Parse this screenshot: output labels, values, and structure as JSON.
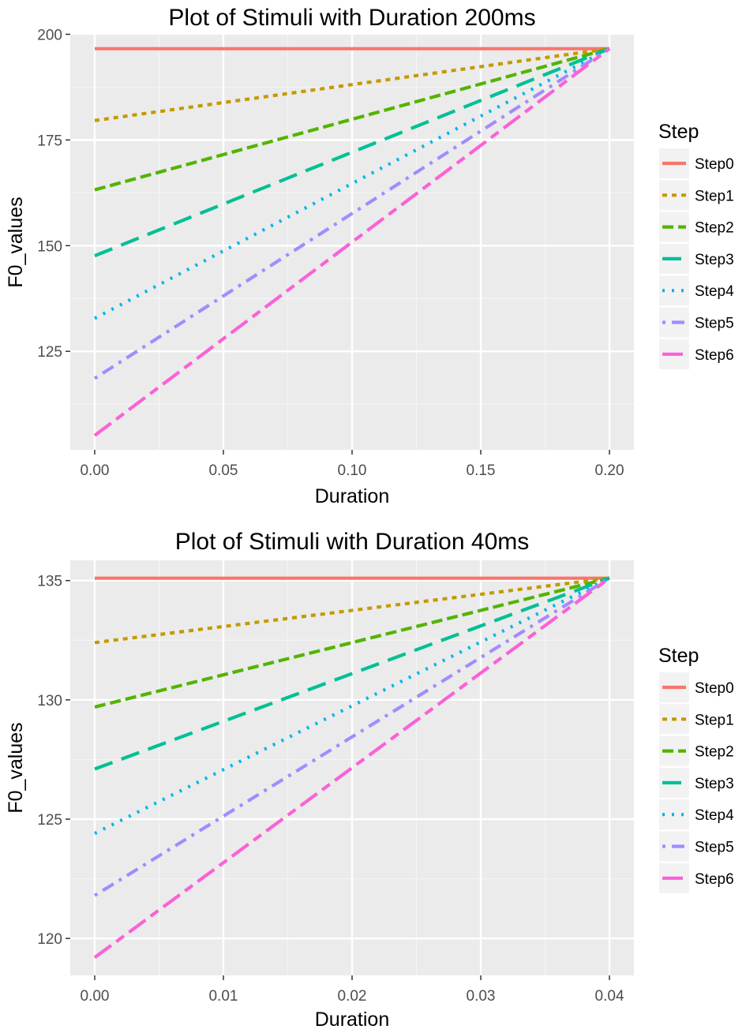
{
  "chart_data": [
    {
      "type": "line",
      "title": "Plot of Stimuli with Duration 200ms",
      "xlabel": "Duration",
      "ylabel": "F0_values",
      "xlim": [
        -0.0095,
        0.2095
      ],
      "ylim": [
        101.7,
        199.9
      ],
      "x_ticks": [
        0.0,
        0.05,
        0.1,
        0.15,
        0.2
      ],
      "x_tick_labels": [
        "0.00",
        "0.05",
        "0.10",
        "0.15",
        "0.20"
      ],
      "y_ticks": [
        125,
        150,
        175,
        200
      ],
      "y_tick_labels": [
        "125",
        "150",
        "175",
        "200"
      ],
      "grid": true,
      "legend": {
        "title": "Step",
        "position": "right"
      },
      "series": [
        {
          "name": "Step0",
          "color": "#F8766D",
          "dash": "solid",
          "x": [
            0,
            0.2
          ],
          "y": [
            196.6,
            196.6
          ]
        },
        {
          "name": "Step1",
          "color": "#C49A00",
          "dash": "dotted",
          "x": [
            0,
            0.2
          ],
          "y": [
            179.6,
            196.6
          ]
        },
        {
          "name": "Step2",
          "color": "#53B400",
          "dash": "dashed",
          "x": [
            0,
            0.2
          ],
          "y": [
            163.2,
            196.6
          ]
        },
        {
          "name": "Step3",
          "color": "#00C094",
          "dash": "longdash",
          "x": [
            0,
            0.2
          ],
          "y": [
            147.6,
            196.6
          ]
        },
        {
          "name": "Step4",
          "color": "#00B6EB",
          "dash": "dotted2",
          "x": [
            0,
            0.2
          ],
          "y": [
            132.8,
            196.6
          ]
        },
        {
          "name": "Step5",
          "color": "#A58AFF",
          "dash": "dotdash",
          "x": [
            0,
            0.2
          ],
          "y": [
            118.6,
            196.6
          ]
        },
        {
          "name": "Step6",
          "color": "#FB61D7",
          "dash": "twodash",
          "x": [
            0,
            0.2
          ],
          "y": [
            105.1,
            196.6
          ]
        }
      ]
    },
    {
      "type": "line",
      "title": "Plot of Stimuli with Duration 40ms",
      "xlabel": "Duration",
      "ylabel": "F0_values",
      "xlim": [
        -0.0019,
        0.0419
      ],
      "ylim": [
        118.45,
        135.85
      ],
      "x_ticks": [
        0.0,
        0.01,
        0.02,
        0.03,
        0.04
      ],
      "x_tick_labels": [
        "0.00",
        "0.01",
        "0.02",
        "0.03",
        "0.04"
      ],
      "y_ticks": [
        120,
        125,
        130,
        135
      ],
      "y_tick_labels": [
        "120",
        "125",
        "130",
        "135"
      ],
      "grid": true,
      "legend": {
        "title": "Step",
        "position": "right"
      },
      "series": [
        {
          "name": "Step0",
          "color": "#F8766D",
          "dash": "solid",
          "x": [
            0,
            0.04
          ],
          "y": [
            135.1,
            135.1
          ]
        },
        {
          "name": "Step1",
          "color": "#C49A00",
          "dash": "dotted",
          "x": [
            0,
            0.04
          ],
          "y": [
            132.4,
            135.1
          ]
        },
        {
          "name": "Step2",
          "color": "#53B400",
          "dash": "dashed",
          "x": [
            0,
            0.04
          ],
          "y": [
            129.7,
            135.1
          ]
        },
        {
          "name": "Step3",
          "color": "#00C094",
          "dash": "longdash",
          "x": [
            0,
            0.04
          ],
          "y": [
            127.1,
            135.1
          ]
        },
        {
          "name": "Step4",
          "color": "#00B6EB",
          "dash": "dotted2",
          "x": [
            0,
            0.04
          ],
          "y": [
            124.4,
            135.1
          ]
        },
        {
          "name": "Step5",
          "color": "#A58AFF",
          "dash": "dotdash",
          "x": [
            0,
            0.04
          ],
          "y": [
            121.8,
            135.1
          ]
        },
        {
          "name": "Step6",
          "color": "#FB61D7",
          "dash": "twodash",
          "x": [
            0,
            0.04
          ],
          "y": [
            119.2,
            135.1
          ]
        }
      ]
    }
  ]
}
